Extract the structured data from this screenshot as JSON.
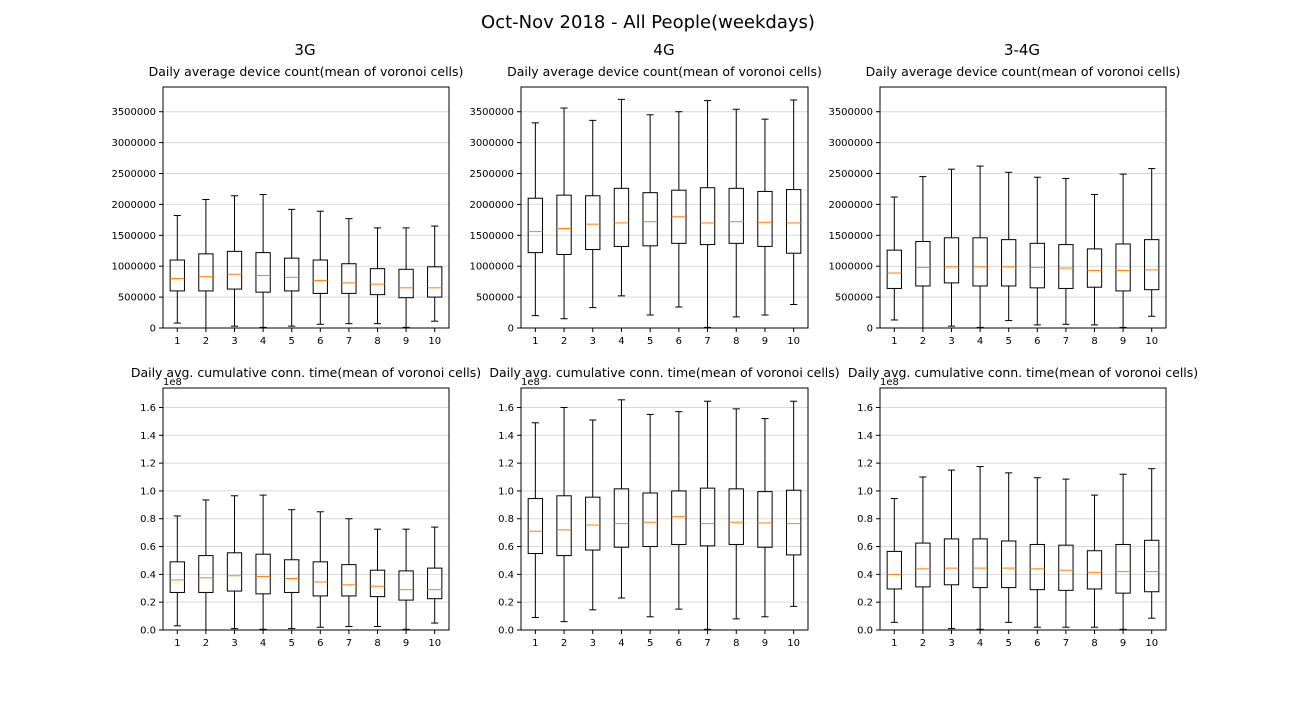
{
  "figure": {
    "title": "Oct-Nov 2018 - All People(weekdays)",
    "column_titles": [
      "3G",
      "4G",
      "3-4G"
    ]
  },
  "colors": {
    "box": "#000000",
    "median": "#ff7f0e",
    "grid": "#d9d9d9",
    "axis": "#000000"
  },
  "chart_data": [
    {
      "type": "boxplot",
      "network": "3G",
      "title": "Daily average device count(mean of voronoi cells)",
      "offset_label": "",
      "categories": [
        "1",
        "2",
        "3",
        "4",
        "5",
        "6",
        "7",
        "8",
        "9",
        "10"
      ],
      "ylim": [
        0,
        3900000
      ],
      "yticks": [
        0,
        500000,
        1000000,
        1500000,
        2000000,
        2500000,
        3000000,
        3500000
      ],
      "ytick_labels": [
        "0",
        "500000",
        "1000000",
        "1500000",
        "2000000",
        "2500000",
        "3000000",
        "3500000"
      ],
      "grid": "y",
      "boxes": [
        {
          "whislo": 80000,
          "q1": 600000,
          "med": 800000,
          "q3": 1100000,
          "whishi": 1820000
        },
        {
          "whislo": 0,
          "q1": 600000,
          "med": 830000,
          "q3": 1200000,
          "whishi": 2080000
        },
        {
          "whislo": 30000,
          "q1": 630000,
          "med": 870000,
          "q3": 1240000,
          "whishi": 2140000
        },
        {
          "whislo": 10000,
          "q1": 580000,
          "med": 850000,
          "q3": 1220000,
          "whishi": 2160000
        },
        {
          "whislo": 30000,
          "q1": 600000,
          "med": 820000,
          "q3": 1130000,
          "whishi": 1920000
        },
        {
          "whislo": 60000,
          "q1": 560000,
          "med": 770000,
          "q3": 1100000,
          "whishi": 1890000
        },
        {
          "whislo": 70000,
          "q1": 560000,
          "med": 730000,
          "q3": 1040000,
          "whishi": 1770000
        },
        {
          "whislo": 70000,
          "q1": 540000,
          "med": 710000,
          "q3": 960000,
          "whishi": 1620000
        },
        {
          "whislo": 10000,
          "q1": 490000,
          "med": 650000,
          "q3": 950000,
          "whishi": 1620000
        },
        {
          "whislo": 110000,
          "q1": 500000,
          "med": 650000,
          "q3": 990000,
          "whishi": 1650000
        }
      ]
    },
    {
      "type": "boxplot",
      "network": "4G",
      "title": "Daily average device count(mean of voronoi cells)",
      "offset_label": "",
      "categories": [
        "1",
        "2",
        "3",
        "4",
        "5",
        "6",
        "7",
        "8",
        "9",
        "10"
      ],
      "ylim": [
        0,
        3900000
      ],
      "yticks": [
        0,
        500000,
        1000000,
        1500000,
        2000000,
        2500000,
        3000000,
        3500000
      ],
      "ytick_labels": [
        "0",
        "500000",
        "1000000",
        "1500000",
        "2000000",
        "2500000",
        "3000000",
        "3500000"
      ],
      "grid": "y",
      "boxes": [
        {
          "whislo": 200000,
          "q1": 1220000,
          "med": 1560000,
          "q3": 2100000,
          "whishi": 3320000
        },
        {
          "whislo": 150000,
          "q1": 1190000,
          "med": 1610000,
          "q3": 2150000,
          "whishi": 3560000
        },
        {
          "whislo": 330000,
          "q1": 1270000,
          "med": 1680000,
          "q3": 2140000,
          "whishi": 3360000
        },
        {
          "whislo": 520000,
          "q1": 1320000,
          "med": 1700000,
          "q3": 2260000,
          "whishi": 3700000
        },
        {
          "whislo": 210000,
          "q1": 1330000,
          "med": 1720000,
          "q3": 2190000,
          "whishi": 3450000
        },
        {
          "whislo": 340000,
          "q1": 1370000,
          "med": 1800000,
          "q3": 2230000,
          "whishi": 3500000
        },
        {
          "whislo": 10000,
          "q1": 1350000,
          "med": 1700000,
          "q3": 2270000,
          "whishi": 3680000
        },
        {
          "whislo": 180000,
          "q1": 1370000,
          "med": 1720000,
          "q3": 2260000,
          "whishi": 3540000
        },
        {
          "whislo": 210000,
          "q1": 1320000,
          "med": 1710000,
          "q3": 2210000,
          "whishi": 3380000
        },
        {
          "whislo": 380000,
          "q1": 1210000,
          "med": 1700000,
          "q3": 2240000,
          "whishi": 3690000
        }
      ]
    },
    {
      "type": "boxplot",
      "network": "3-4G",
      "title": "Daily average device count(mean of voronoi cells)",
      "offset_label": "",
      "categories": [
        "1",
        "2",
        "3",
        "4",
        "5",
        "6",
        "7",
        "8",
        "9",
        "10"
      ],
      "ylim": [
        0,
        3900000
      ],
      "yticks": [
        0,
        500000,
        1000000,
        1500000,
        2000000,
        2500000,
        3000000,
        3500000
      ],
      "ytick_labels": [
        "0",
        "500000",
        "1000000",
        "1500000",
        "2000000",
        "2500000",
        "3000000",
        "3500000"
      ],
      "grid": "y",
      "boxes": [
        {
          "whislo": 130000,
          "q1": 640000,
          "med": 890000,
          "q3": 1260000,
          "whishi": 2120000
        },
        {
          "whislo": 0,
          "q1": 680000,
          "med": 980000,
          "q3": 1400000,
          "whishi": 2450000
        },
        {
          "whislo": 30000,
          "q1": 730000,
          "med": 990000,
          "q3": 1460000,
          "whishi": 2570000
        },
        {
          "whislo": 10000,
          "q1": 680000,
          "med": 990000,
          "q3": 1460000,
          "whishi": 2620000
        },
        {
          "whislo": 120000,
          "q1": 680000,
          "med": 990000,
          "q3": 1430000,
          "whishi": 2520000
        },
        {
          "whislo": 50000,
          "q1": 650000,
          "med": 980000,
          "q3": 1370000,
          "whishi": 2440000
        },
        {
          "whislo": 60000,
          "q1": 640000,
          "med": 970000,
          "q3": 1350000,
          "whishi": 2420000
        },
        {
          "whislo": 50000,
          "q1": 660000,
          "med": 930000,
          "q3": 1280000,
          "whishi": 2160000
        },
        {
          "whislo": 10000,
          "q1": 600000,
          "med": 930000,
          "q3": 1360000,
          "whishi": 2490000
        },
        {
          "whislo": 190000,
          "q1": 620000,
          "med": 940000,
          "q3": 1430000,
          "whishi": 2580000
        }
      ]
    },
    {
      "type": "boxplot",
      "network": "3G",
      "title": "Daily avg. cumulative conn. time(mean of voronoi cells)",
      "offset_label": "1e8",
      "categories": [
        "1",
        "2",
        "3",
        "4",
        "5",
        "6",
        "7",
        "8",
        "9",
        "10"
      ],
      "ylim": [
        0,
        1.74
      ],
      "yticks": [
        0,
        0.2,
        0.4,
        0.6,
        0.8,
        1.0,
        1.2,
        1.4,
        1.6
      ],
      "ytick_labels": [
        "0.0",
        "0.2",
        "0.4",
        "0.6",
        "0.8",
        "1.0",
        "1.2",
        "1.4",
        "1.6"
      ],
      "grid": "y",
      "boxes": [
        {
          "whislo": 0.03,
          "q1": 0.27,
          "med": 0.36,
          "q3": 0.49,
          "whishi": 0.82
        },
        {
          "whislo": 0.0,
          "q1": 0.27,
          "med": 0.375,
          "q3": 0.535,
          "whishi": 0.935
        },
        {
          "whislo": 0.01,
          "q1": 0.28,
          "med": 0.39,
          "q3": 0.555,
          "whishi": 0.965
        },
        {
          "whislo": 0.005,
          "q1": 0.26,
          "med": 0.385,
          "q3": 0.545,
          "whishi": 0.97
        },
        {
          "whislo": 0.01,
          "q1": 0.27,
          "med": 0.37,
          "q3": 0.505,
          "whishi": 0.865
        },
        {
          "whislo": 0.02,
          "q1": 0.245,
          "med": 0.345,
          "q3": 0.49,
          "whishi": 0.85
        },
        {
          "whislo": 0.025,
          "q1": 0.245,
          "med": 0.325,
          "q3": 0.47,
          "whishi": 0.8
        },
        {
          "whislo": 0.025,
          "q1": 0.24,
          "med": 0.315,
          "q3": 0.43,
          "whishi": 0.725
        },
        {
          "whislo": 0.005,
          "q1": 0.215,
          "med": 0.29,
          "q3": 0.425,
          "whishi": 0.725
        },
        {
          "whislo": 0.05,
          "q1": 0.225,
          "med": 0.29,
          "q3": 0.445,
          "whishi": 0.74
        }
      ]
    },
    {
      "type": "boxplot",
      "network": "4G",
      "title": "Daily avg. cumulative conn. time(mean of voronoi cells)",
      "offset_label": "1e8",
      "categories": [
        "1",
        "2",
        "3",
        "4",
        "5",
        "6",
        "7",
        "8",
        "9",
        "10"
      ],
      "ylim": [
        0,
        1.74
      ],
      "yticks": [
        0,
        0.2,
        0.4,
        0.6,
        0.8,
        1.0,
        1.2,
        1.4,
        1.6
      ],
      "ytick_labels": [
        "0.0",
        "0.2",
        "0.4",
        "0.6",
        "0.8",
        "1.0",
        "1.2",
        "1.4",
        "1.6"
      ],
      "grid": "y",
      "boxes": [
        {
          "whislo": 0.09,
          "q1": 0.55,
          "med": 0.71,
          "q3": 0.945,
          "whishi": 1.49
        },
        {
          "whislo": 0.06,
          "q1": 0.535,
          "med": 0.72,
          "q3": 0.965,
          "whishi": 1.6
        },
        {
          "whislo": 0.145,
          "q1": 0.575,
          "med": 0.755,
          "q3": 0.955,
          "whishi": 1.51
        },
        {
          "whislo": 0.23,
          "q1": 0.595,
          "med": 0.765,
          "q3": 1.015,
          "whishi": 1.655
        },
        {
          "whislo": 0.095,
          "q1": 0.6,
          "med": 0.775,
          "q3": 0.985,
          "whishi": 1.55
        },
        {
          "whislo": 0.15,
          "q1": 0.615,
          "med": 0.815,
          "q3": 1.0,
          "whishi": 1.57
        },
        {
          "whislo": 0.005,
          "q1": 0.605,
          "med": 0.765,
          "q3": 1.02,
          "whishi": 1.645
        },
        {
          "whislo": 0.08,
          "q1": 0.615,
          "med": 0.775,
          "q3": 1.015,
          "whishi": 1.59
        },
        {
          "whislo": 0.095,
          "q1": 0.595,
          "med": 0.77,
          "q3": 0.995,
          "whishi": 1.52
        },
        {
          "whislo": 0.17,
          "q1": 0.54,
          "med": 0.765,
          "q3": 1.005,
          "whishi": 1.645
        }
      ]
    },
    {
      "type": "boxplot",
      "network": "3-4G",
      "title": "Daily avg. cumulative conn. time(mean of voronoi cells)",
      "offset_label": "1e8",
      "categories": [
        "1",
        "2",
        "3",
        "4",
        "5",
        "6",
        "7",
        "8",
        "9",
        "10"
      ],
      "ylim": [
        0,
        1.74
      ],
      "yticks": [
        0,
        0.2,
        0.4,
        0.6,
        0.8,
        1.0,
        1.2,
        1.4,
        1.6
      ],
      "ytick_labels": [
        "0.0",
        "0.2",
        "0.4",
        "0.6",
        "0.8",
        "1.0",
        "1.2",
        "1.4",
        "1.6"
      ],
      "grid": "y",
      "boxes": [
        {
          "whislo": 0.055,
          "q1": 0.295,
          "med": 0.4,
          "q3": 0.565,
          "whishi": 0.945
        },
        {
          "whislo": 0.0,
          "q1": 0.31,
          "med": 0.44,
          "q3": 0.625,
          "whishi": 1.1
        },
        {
          "whislo": 0.01,
          "q1": 0.325,
          "med": 0.445,
          "q3": 0.655,
          "whishi": 1.15
        },
        {
          "whislo": 0.005,
          "q1": 0.305,
          "med": 0.445,
          "q3": 0.655,
          "whishi": 1.175
        },
        {
          "whislo": 0.055,
          "q1": 0.305,
          "med": 0.445,
          "q3": 0.64,
          "whishi": 1.13
        },
        {
          "whislo": 0.02,
          "q1": 0.29,
          "med": 0.44,
          "q3": 0.615,
          "whishi": 1.095
        },
        {
          "whislo": 0.02,
          "q1": 0.285,
          "med": 0.43,
          "q3": 0.61,
          "whishi": 1.085
        },
        {
          "whislo": 0.02,
          "q1": 0.295,
          "med": 0.415,
          "q3": 0.57,
          "whishi": 0.97
        },
        {
          "whislo": 0.005,
          "q1": 0.265,
          "med": 0.42,
          "q3": 0.615,
          "whishi": 1.12
        },
        {
          "whislo": 0.085,
          "q1": 0.275,
          "med": 0.42,
          "q3": 0.645,
          "whishi": 1.16
        }
      ]
    }
  ]
}
